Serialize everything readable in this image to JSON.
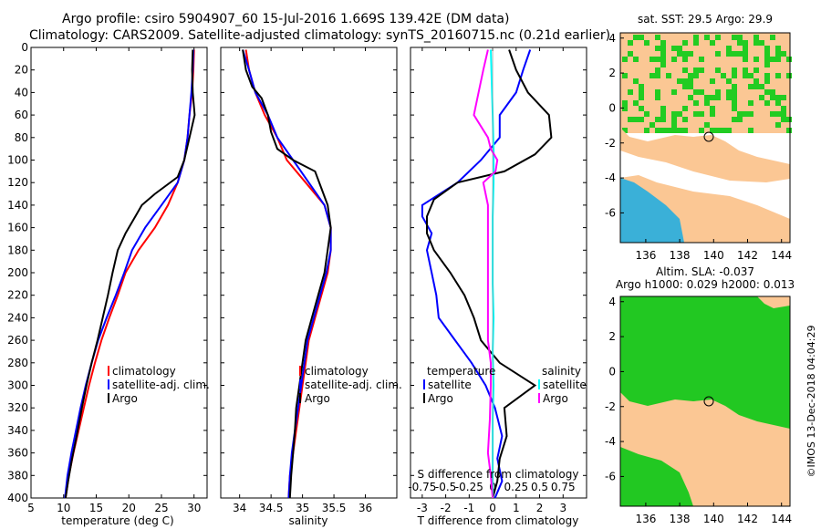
{
  "header": {
    "line1": "Argo profile: csiro 5904907_60 15-Jul-2016 1.669S 139.42E (DM data)",
    "line2": "Climatology: CARS2009. Satellite-adjusted climatology: synTS_20160715.nc (0.21d earlier)"
  },
  "colors": {
    "climatology": "#ff0000",
    "satellite": "#0000ff",
    "argo": "#000000",
    "argo_s": "#ff00ff",
    "sat_s": "#00ffff",
    "land": "#fbc794",
    "sea_sst": "#ffffff",
    "sst_green": "#22cc22",
    "sla_green": "#22c822"
  },
  "depth_axis": {
    "ticks": [
      "0",
      "20",
      "40",
      "60",
      "80",
      "100",
      "120",
      "140",
      "160",
      "180",
      "200",
      "220",
      "240",
      "260",
      "280",
      "300",
      "320",
      "340",
      "360",
      "380",
      "400"
    ],
    "range": [
      0,
      400
    ]
  },
  "chart_data": [
    {
      "type": "line",
      "title": "",
      "xlabel": "temperature (deg C)",
      "ylabel": "",
      "xlim": [
        5,
        32
      ],
      "ylim": [
        400,
        0
      ],
      "xticks": [
        "5",
        "10",
        "15",
        "20",
        "25",
        "30"
      ],
      "series": [
        {
          "name": "climatology",
          "color": "#ff0000",
          "points": [
            [
              30.0,
              2
            ],
            [
              29.9,
              20
            ],
            [
              29.7,
              40
            ],
            [
              29.3,
              60
            ],
            [
              29.0,
              80
            ],
            [
              28.5,
              100
            ],
            [
              27.5,
              120
            ],
            [
              26.0,
              140
            ],
            [
              24.0,
              160
            ],
            [
              21.5,
              180
            ],
            [
              19.5,
              200
            ],
            [
              18.3,
              220
            ],
            [
              17.0,
              240
            ],
            [
              15.8,
              260
            ],
            [
              14.8,
              280
            ],
            [
              13.9,
              300
            ],
            [
              13.1,
              320
            ],
            [
              12.3,
              340
            ],
            [
              11.5,
              360
            ],
            [
              10.8,
              380
            ],
            [
              10.3,
              400
            ]
          ]
        },
        {
          "name": "satellite-adj. clim.",
          "color": "#0000ff",
          "points": [
            [
              29.9,
              2
            ],
            [
              29.8,
              20
            ],
            [
              29.6,
              40
            ],
            [
              29.3,
              60
            ],
            [
              29.0,
              80
            ],
            [
              28.5,
              100
            ],
            [
              27.5,
              120
            ],
            [
              25.0,
              140
            ],
            [
              22.5,
              160
            ],
            [
              20.5,
              180
            ],
            [
              19.3,
              200
            ],
            [
              18.0,
              220
            ],
            [
              16.6,
              240
            ],
            [
              15.3,
              260
            ],
            [
              14.3,
              280
            ],
            [
              13.4,
              300
            ],
            [
              12.6,
              320
            ],
            [
              11.9,
              340
            ],
            [
              11.2,
              360
            ],
            [
              10.6,
              380
            ],
            [
              10.2,
              400
            ]
          ]
        },
        {
          "name": "Argo",
          "color": "#000000",
          "points": [
            [
              29.8,
              2
            ],
            [
              29.7,
              20
            ],
            [
              29.8,
              40
            ],
            [
              30.1,
              60
            ],
            [
              29.3,
              80
            ],
            [
              28.5,
              100
            ],
            [
              27.5,
              115
            ],
            [
              24.0,
              130
            ],
            [
              22.0,
              140
            ],
            [
              21.0,
              150
            ],
            [
              19.5,
              165
            ],
            [
              18.3,
              180
            ],
            [
              17.5,
              200
            ],
            [
              16.8,
              220
            ],
            [
              16.0,
              240
            ],
            [
              15.2,
              260
            ],
            [
              14.3,
              280
            ],
            [
              13.5,
              300
            ],
            [
              12.8,
              320
            ],
            [
              12.0,
              345
            ],
            [
              11.3,
              365
            ],
            [
              10.7,
              385
            ],
            [
              10.3,
              400
            ]
          ]
        }
      ],
      "legend": [
        "climatology",
        "satellite-adj. clim.",
        "Argo"
      ]
    },
    {
      "type": "line",
      "title": "",
      "xlabel": "salinity",
      "ylabel": "",
      "xlim": [
        33.7,
        36.5
      ],
      "ylim": [
        400,
        0
      ],
      "xticks": [
        "34",
        "34.5",
        "35",
        "35.5",
        "36"
      ],
      "series": [
        {
          "name": "climatology",
          "color": "#ff0000",
          "points": [
            [
              34.1,
              2
            ],
            [
              34.15,
              20
            ],
            [
              34.25,
              40
            ],
            [
              34.4,
              60
            ],
            [
              34.6,
              80
            ],
            [
              34.75,
              100
            ],
            [
              35.05,
              120
            ],
            [
              35.35,
              140
            ],
            [
              35.45,
              160
            ],
            [
              35.45,
              180
            ],
            [
              35.4,
              200
            ],
            [
              35.3,
              220
            ],
            [
              35.2,
              240
            ],
            [
              35.1,
              260
            ],
            [
              35.05,
              280
            ],
            [
              35.0,
              300
            ],
            [
              34.95,
              320
            ],
            [
              34.9,
              340
            ],
            [
              34.85,
              360
            ],
            [
              34.8,
              380
            ],
            [
              34.78,
              400
            ]
          ]
        },
        {
          "name": "satellite-adj. clim.",
          "color": "#0000ff",
          "points": [
            [
              34.05,
              2
            ],
            [
              34.15,
              20
            ],
            [
              34.25,
              40
            ],
            [
              34.45,
              60
            ],
            [
              34.6,
              80
            ],
            [
              34.85,
              100
            ],
            [
              35.1,
              120
            ],
            [
              35.35,
              140
            ],
            [
              35.45,
              160
            ],
            [
              35.45,
              180
            ],
            [
              35.38,
              200
            ],
            [
              35.28,
              220
            ],
            [
              35.18,
              240
            ],
            [
              35.08,
              260
            ],
            [
              35.03,
              280
            ],
            [
              34.98,
              300
            ],
            [
              34.93,
              320
            ],
            [
              34.88,
              340
            ],
            [
              34.83,
              360
            ],
            [
              34.8,
              380
            ],
            [
              34.78,
              400
            ]
          ]
        },
        {
          "name": "Argo",
          "color": "#000000",
          "points": [
            [
              34.05,
              2
            ],
            [
              34.1,
              20
            ],
            [
              34.2,
              35
            ],
            [
              34.35,
              45
            ],
            [
              34.45,
              60
            ],
            [
              34.5,
              75
            ],
            [
              34.6,
              90
            ],
            [
              34.85,
              100
            ],
            [
              35.2,
              110
            ],
            [
              35.3,
              125
            ],
            [
              35.4,
              140
            ],
            [
              35.45,
              160
            ],
            [
              35.4,
              180
            ],
            [
              35.35,
              200
            ],
            [
              35.25,
              220
            ],
            [
              35.15,
              240
            ],
            [
              35.05,
              260
            ],
            [
              35.0,
              280
            ],
            [
              34.95,
              300
            ],
            [
              34.9,
              320
            ],
            [
              34.88,
              340
            ],
            [
              34.85,
              360
            ],
            [
              34.82,
              380
            ],
            [
              34.8,
              400
            ]
          ]
        }
      ],
      "legend": [
        "climatology",
        "satellite-adj. clim.",
        "Argo"
      ]
    },
    {
      "type": "line",
      "title": "",
      "xlabel": "T difference from climatology",
      "xlabel_top": "S difference from climatology",
      "xlim": [
        -3.5,
        4
      ],
      "ylim": [
        400,
        0
      ],
      "xticks": [
        "-3",
        "-2",
        "-1",
        "0",
        "1",
        "2",
        "3"
      ],
      "xticks_s": [
        "-0.75",
        "-0.5",
        "-0.25",
        "0",
        "0.25",
        "0.5",
        "0.75"
      ],
      "series": [
        {
          "name": "T satellite",
          "color": "#0000ff",
          "points": [
            [
              1.6,
              2
            ],
            [
              1.3,
              20
            ],
            [
              1.0,
              40
            ],
            [
              0.3,
              60
            ],
            [
              0.3,
              80
            ],
            [
              -0.5,
              100
            ],
            [
              -1.5,
              120
            ],
            [
              -3.0,
              140
            ],
            [
              -3.0,
              150
            ],
            [
              -2.6,
              165
            ],
            [
              -2.8,
              180
            ],
            [
              -2.6,
              200
            ],
            [
              -2.4,
              220
            ],
            [
              -2.3,
              240
            ],
            [
              -1.6,
              260
            ],
            [
              -0.9,
              280
            ],
            [
              -0.3,
              300
            ],
            [
              0.1,
              320
            ],
            [
              0.4,
              345
            ],
            [
              0.2,
              365
            ],
            [
              0.4,
              385
            ],
            [
              0.1,
              400
            ]
          ]
        },
        {
          "name": "T Argo",
          "color": "#000000",
          "points": [
            [
              0.7,
              2
            ],
            [
              1.0,
              20
            ],
            [
              1.5,
              40
            ],
            [
              2.4,
              60
            ],
            [
              2.5,
              80
            ],
            [
              1.8,
              95
            ],
            [
              0.5,
              110
            ],
            [
              -1.5,
              120
            ],
            [
              -2.5,
              135
            ],
            [
              -2.8,
              150
            ],
            [
              -2.8,
              165
            ],
            [
              -2.5,
              180
            ],
            [
              -1.8,
              200
            ],
            [
              -1.2,
              220
            ],
            [
              -0.8,
              240
            ],
            [
              -0.5,
              260
            ],
            [
              0.3,
              280
            ],
            [
              1.8,
              300
            ],
            [
              0.5,
              320
            ],
            [
              0.6,
              345
            ],
            [
              0.3,
              365
            ],
            [
              0.2,
              385
            ],
            [
              0.0,
              400
            ]
          ]
        },
        {
          "name": "S satellite",
          "color": "#00ffff",
          "points": [
            [
              -0.02,
              2
            ],
            [
              -0.01,
              30
            ],
            [
              0.0,
              60
            ],
            [
              0.01,
              90
            ],
            [
              0.01,
              120
            ],
            [
              0.0,
              150
            ],
            [
              0.0,
              180
            ],
            [
              0.0,
              210
            ],
            [
              0.01,
              240
            ],
            [
              0.0,
              270
            ],
            [
              0.01,
              300
            ],
            [
              0.0,
              330
            ],
            [
              0.0,
              360
            ],
            [
              0.0,
              400
            ]
          ]
        },
        {
          "name": "S Argo",
          "color": "#ff00ff",
          "points": [
            [
              -0.05,
              2
            ],
            [
              -0.1,
              20
            ],
            [
              -0.15,
              40
            ],
            [
              -0.2,
              60
            ],
            [
              -0.05,
              80
            ],
            [
              -0.02,
              90
            ],
            [
              0.05,
              100
            ],
            [
              0.03,
              110
            ],
            [
              -0.1,
              120
            ],
            [
              -0.05,
              140
            ],
            [
              -0.05,
              160
            ],
            [
              -0.05,
              180
            ],
            [
              -0.05,
              200
            ],
            [
              -0.05,
              220
            ],
            [
              -0.05,
              240
            ],
            [
              -0.05,
              260
            ],
            [
              -0.02,
              280
            ],
            [
              -0.02,
              300
            ],
            [
              -0.03,
              330
            ],
            [
              -0.05,
              360
            ],
            [
              -0.02,
              380
            ],
            [
              0.0,
              400
            ]
          ]
        }
      ],
      "legend_t_title": "temperature",
      "legend_s_title": "salinity",
      "legend": [
        "satellite",
        "Argo",
        "satellite",
        "Argo"
      ]
    }
  ],
  "map_sst": {
    "title": "sat. SST: 29.5 Argo: 29.9",
    "xticks": [
      "136",
      "138",
      "140",
      "142",
      "144"
    ],
    "yticks": [
      "4",
      "2",
      "0",
      "-2",
      "-4",
      "-6"
    ]
  },
  "map_sla": {
    "title1": "Altim. SLA: -0.037",
    "title2": "Argo h1000: 0.029 h2000: 0.013",
    "xticks": [
      "136",
      "138",
      "140",
      "142",
      "144"
    ],
    "yticks": [
      "4",
      "2",
      "0",
      "-2",
      "-4",
      "-6"
    ]
  },
  "watermark": "©IMOS 13-Dec-2018 04:04:29"
}
